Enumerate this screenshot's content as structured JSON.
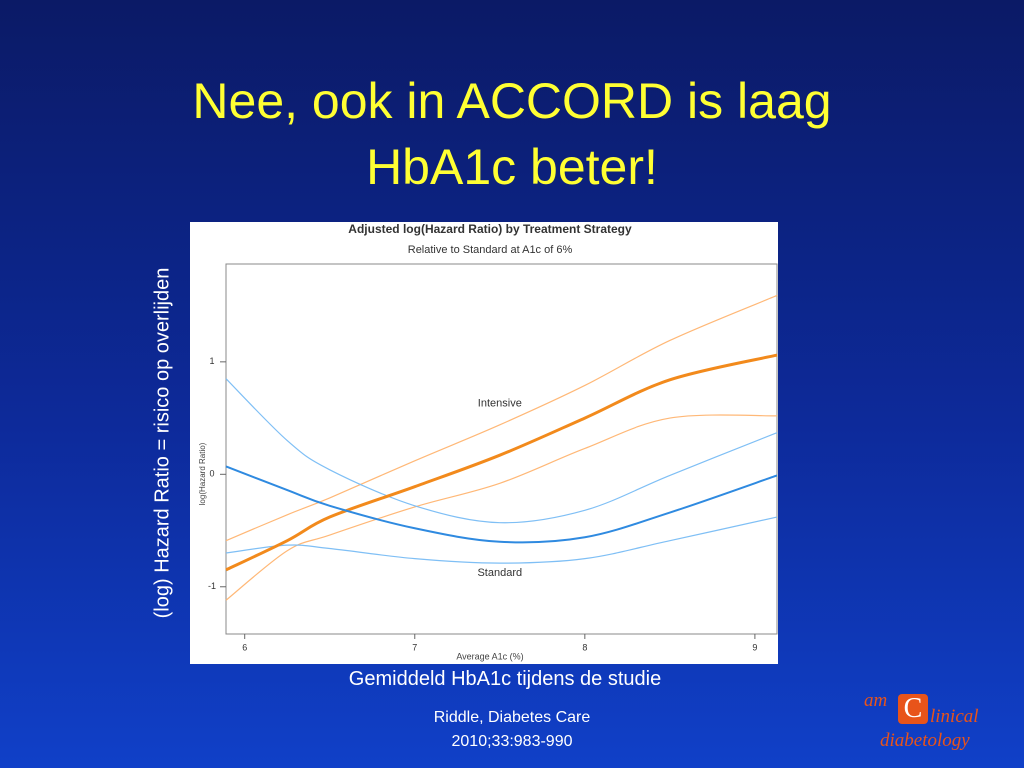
{
  "slide": {
    "title_lines": [
      "Nee, ook in ACCORD is laag",
      "HbA1c beter!"
    ],
    "side_label": "(log) Hazard Ratio = risico op overlijden",
    "bottom_label": "Gemiddeld HbA1c tijdens de studie",
    "citation_lines": [
      "Riddle, Diabetes Care",
      "2010;33:983-990"
    ],
    "logo": {
      "prefix": "am",
      "word1": "linical",
      "word2": "diabetology"
    }
  },
  "chart_data": {
    "type": "line",
    "title": "Adjusted log(Hazard Ratio) by Treatment Strategy",
    "subtitle": "Relative to Standard at A1c of 6%",
    "x_label": "Average A1c (%)",
    "y_label": "log(Hazard Ratio)",
    "x": [
      5.89,
      6.25,
      6.5,
      7,
      7.5,
      8,
      8.5,
      9.13
    ],
    "xlim": [
      5.89,
      9.13
    ],
    "ylim": [
      -1.42,
      1.87
    ],
    "xticks": [
      6,
      7,
      8,
      9
    ],
    "yticks": [
      -1,
      0,
      1
    ],
    "series": [
      {
        "color": "#ffb877",
        "width": 1.2,
        "values": [
          -0.59,
          -0.36,
          -0.21,
          0.12,
          0.44,
          0.79,
          1.19,
          1.59
        ]
      },
      {
        "color": "#ffb877",
        "width": 1.2,
        "values": [
          -1.12,
          -0.68,
          -0.54,
          -0.29,
          -0.08,
          0.23,
          0.5,
          0.52
        ]
      },
      {
        "color": "#7fbff5",
        "width": 1.2,
        "values": [
          0.85,
          0.3,
          0.04,
          -0.28,
          -0.43,
          -0.32,
          -0.01,
          0.37
        ]
      },
      {
        "color": "#7fbff5",
        "width": 1.2,
        "values": [
          -0.7,
          -0.63,
          -0.66,
          -0.75,
          -0.79,
          -0.75,
          -0.59,
          -0.38
        ]
      },
      {
        "color": "#f28a1c",
        "width": 3,
        "values": [
          -0.85,
          -0.59,
          -0.38,
          -0.11,
          0.17,
          0.5,
          0.84,
          1.06
        ]
      },
      {
        "color": "#2f8ae0",
        "width": 2,
        "values": [
          0.07,
          -0.14,
          -0.28,
          -0.48,
          -0.6,
          -0.56,
          -0.34,
          -0.01
        ]
      }
    ],
    "annotations": [
      {
        "text": "Intensive",
        "x": 7.5,
        "y": 0.63
      },
      {
        "text": "Standard",
        "x": 7.5,
        "y": -0.88
      }
    ]
  }
}
